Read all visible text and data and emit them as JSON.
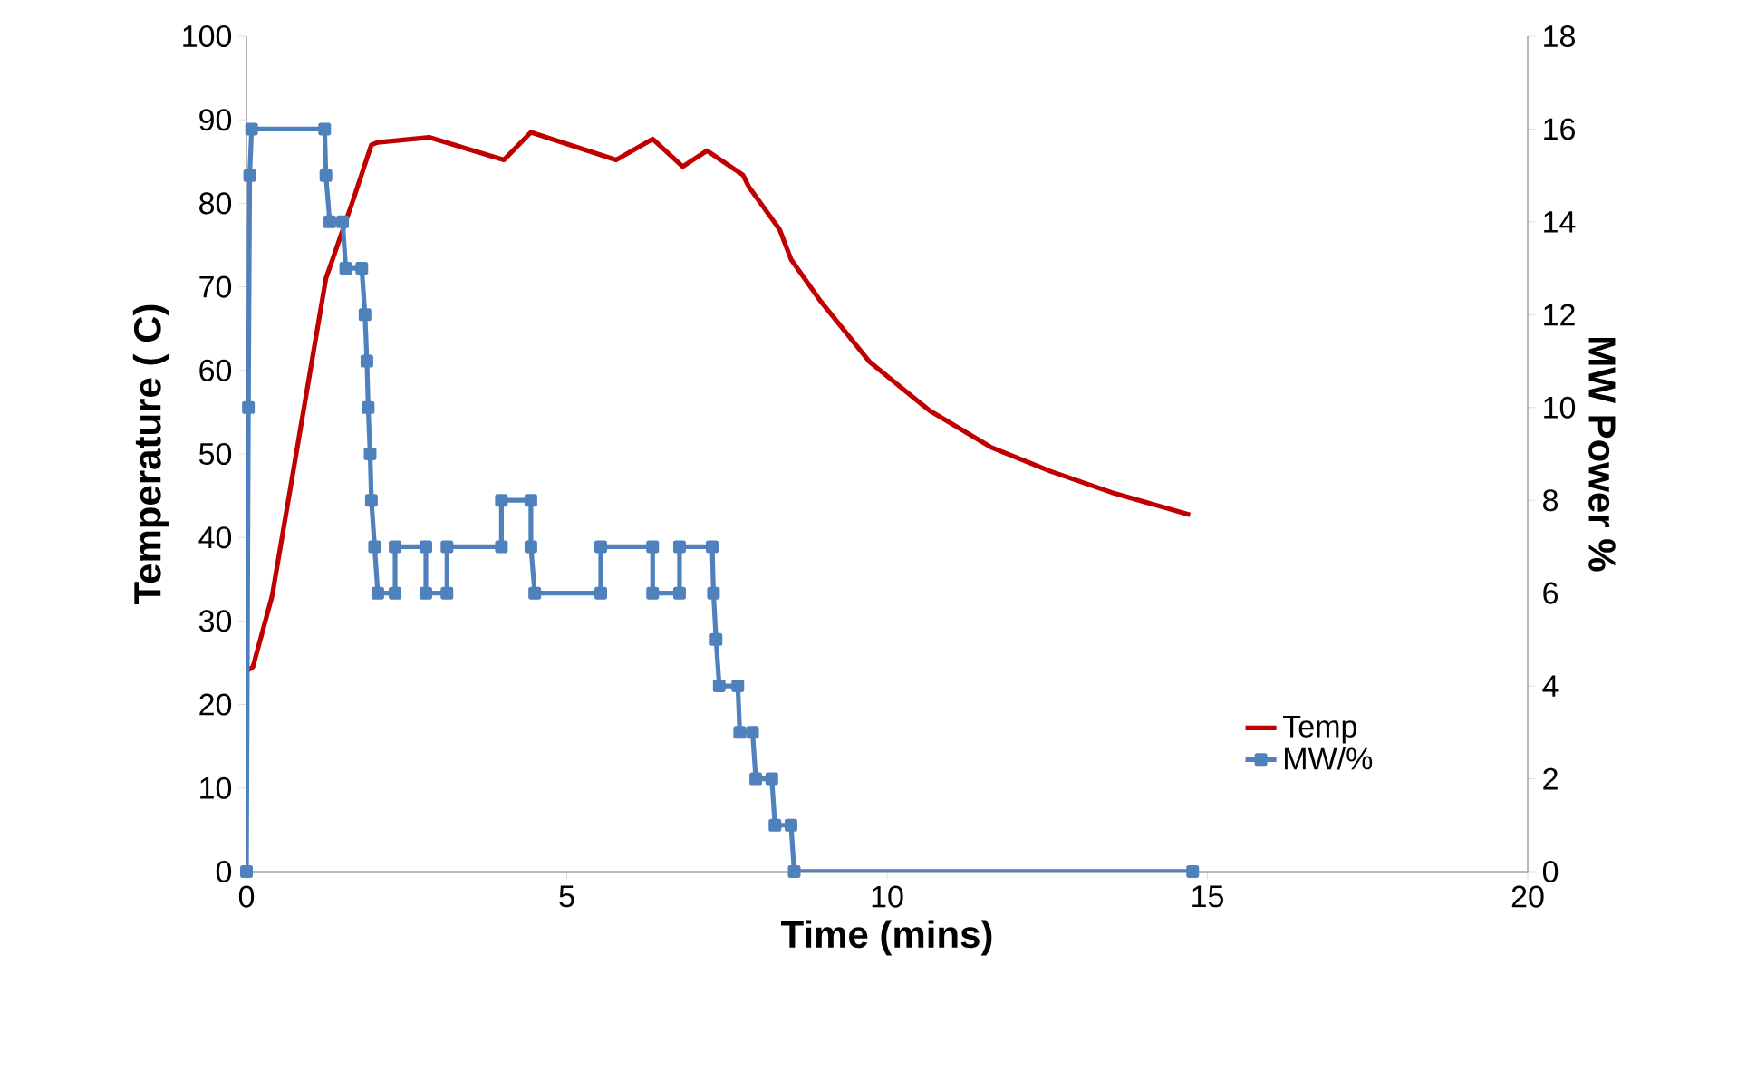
{
  "chart_data": {
    "type": "line",
    "xlabel": "Time (mins)",
    "ylabel": "Temperature ( C)",
    "y2label": "MW Power %",
    "xlim": [
      0,
      20
    ],
    "xticks": [
      0,
      5,
      10,
      15,
      20
    ],
    "ylim": [
      0,
      100
    ],
    "yticks": [
      0,
      10,
      20,
      30,
      40,
      50,
      60,
      70,
      80,
      90,
      100
    ],
    "y2lim": [
      0,
      18
    ],
    "y2ticks": [
      0,
      2,
      4,
      6,
      8,
      10,
      12,
      14,
      16,
      18
    ],
    "legend": "bottom right",
    "grid": false,
    "series": [
      {
        "name": "Temp",
        "color": "#c00000",
        "marker": "none",
        "x": [
          0,
          0.1,
          0.4,
          0.82,
          1.24,
          1.67,
          1.95,
          2.05,
          2.85,
          4.02,
          4.44,
          5.77,
          6.34,
          6.81,
          7.19,
          7.75,
          7.84,
          8.32,
          8.5,
          8.97,
          9.73,
          10.66,
          11.62,
          12.56,
          13.5,
          14.73
        ],
        "values": [
          24,
          24.5,
          33,
          52,
          71,
          80.5,
          87,
          87.3,
          87.9,
          85.2,
          88.5,
          85.2,
          87.7,
          84.4,
          86.3,
          83.4,
          82,
          76.9,
          73.3,
          68.2,
          61,
          55.2,
          50.8,
          47.9,
          45.4,
          42.7
        ]
      },
      {
        "name": "MW/%",
        "color": "#4f81bd",
        "marker": "square",
        "axis": "y2",
        "x": [
          0,
          0.03,
          0.05,
          0.08,
          1.22,
          1.24,
          1.3,
          1.5,
          1.55,
          1.8,
          1.85,
          1.88,
          1.9,
          1.93,
          1.95,
          2.0,
          2.05,
          2.32,
          2.32,
          2.8,
          2.8,
          3.13,
          3.13,
          3.98,
          3.98,
          4.44,
          4.44,
          4.5,
          5.53,
          5.53,
          6.34,
          6.34,
          6.76,
          6.76,
          7.27,
          7.29,
          7.33,
          7.38,
          7.67,
          7.7,
          7.9,
          7.95,
          8.2,
          8.25,
          8.5,
          8.55,
          14.77
        ],
        "values": [
          0,
          10,
          15,
          16,
          16,
          15,
          14,
          14,
          13,
          13,
          12,
          11,
          10,
          9,
          8,
          7,
          6,
          6,
          7,
          7,
          6,
          6,
          7,
          7,
          8,
          8,
          7,
          6,
          6,
          7,
          7,
          6,
          6,
          7,
          7,
          6,
          5,
          4,
          4,
          3,
          3,
          2,
          2,
          1,
          1,
          0,
          0
        ]
      }
    ]
  }
}
